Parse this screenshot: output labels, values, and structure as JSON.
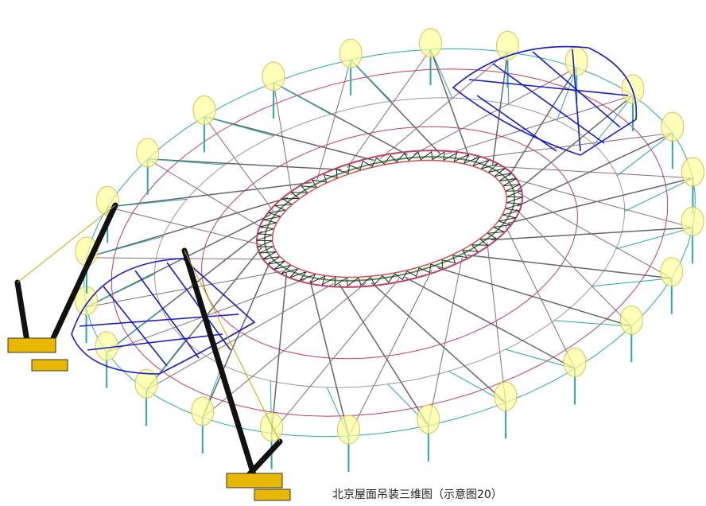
{
  "caption": "北京屋面吊装三维图（示意图20）"
}
